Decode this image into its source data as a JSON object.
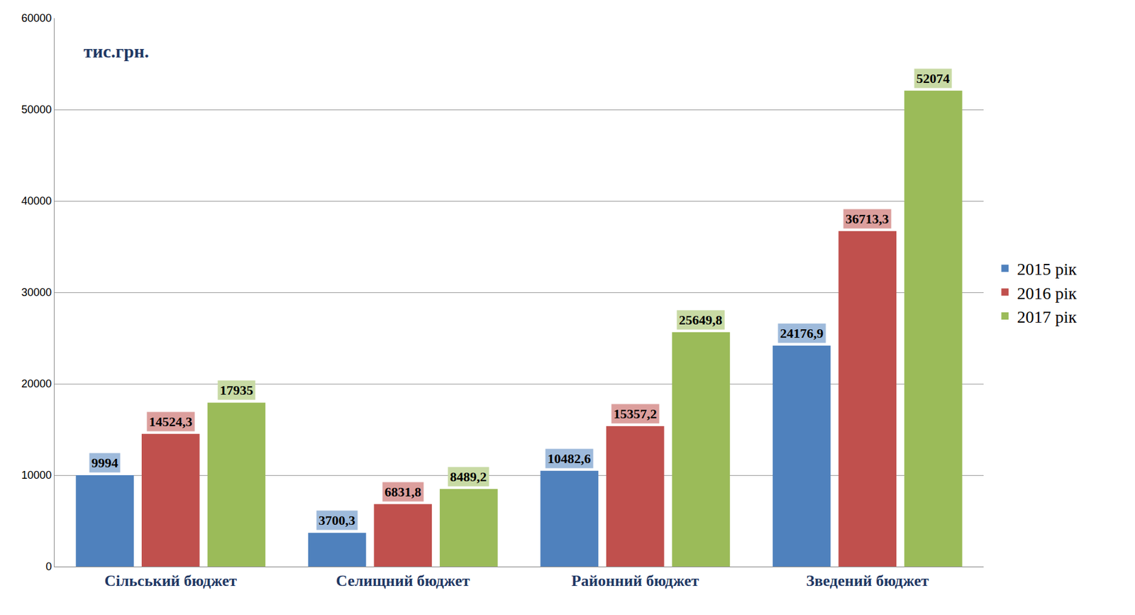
{
  "chart_data": {
    "type": "bar",
    "annotation": "тис.грн.",
    "categories": [
      "Сільський бюджет",
      "Селищний бюджет",
      "Районний бюджет",
      "Зведений бюджет"
    ],
    "series": [
      {
        "name": "2015 рік",
        "color": "#4f81bd",
        "values": [
          9994,
          3700.3,
          10482.6,
          24176.9
        ],
        "value_labels": [
          "9994",
          "3700,3",
          "10482,6",
          "24176,9"
        ]
      },
      {
        "name": "2016 рік",
        "color": "#c0504d",
        "values": [
          14524.3,
          6831.8,
          15357.2,
          36713.3
        ],
        "value_labels": [
          "14524,3",
          "6831,8",
          "15357,2",
          "36713,3"
        ]
      },
      {
        "name": "2017 рік",
        "color": "#9bbb59",
        "values": [
          17935,
          8489.2,
          25649.8,
          52074
        ],
        "value_labels": [
          "17935",
          "8489,2",
          "25649,8",
          "52074"
        ]
      }
    ],
    "ylim": [
      0,
      60000
    ],
    "yticks": [
      0,
      10000,
      20000,
      30000,
      40000,
      50000,
      60000
    ],
    "grid": true,
    "legend": "right",
    "data_labels": true
  }
}
